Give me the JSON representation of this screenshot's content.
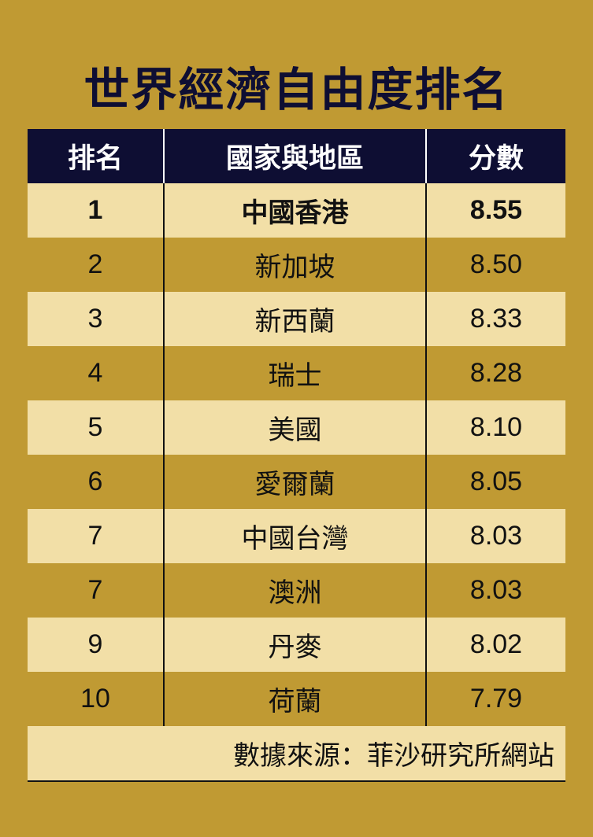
{
  "title": "世界經濟自由度排名",
  "colors": {
    "background": "#C09A33",
    "header": "#0E0E33",
    "row_light": "#F2DFA7"
  },
  "chart_data": {
    "type": "table",
    "title": "世界經濟自由度排名",
    "columns": [
      "排名",
      "國家與地區",
      "分數"
    ],
    "rows": [
      [
        "1",
        "中國香港",
        "8.55"
      ],
      [
        "2",
        "新加坡",
        "8.50"
      ],
      [
        "3",
        "新西蘭",
        "8.33"
      ],
      [
        "4",
        "瑞士",
        "8.28"
      ],
      [
        "5",
        "美國",
        "8.10"
      ],
      [
        "6",
        "愛爾蘭",
        "8.05"
      ],
      [
        "7",
        "中國台灣",
        "8.03"
      ],
      [
        "7",
        "澳洲",
        "8.03"
      ],
      [
        "9",
        "丹麥",
        "8.02"
      ],
      [
        "10",
        "荷蘭",
        "7.79"
      ]
    ],
    "source": "數據來源：菲沙研究所網站"
  }
}
